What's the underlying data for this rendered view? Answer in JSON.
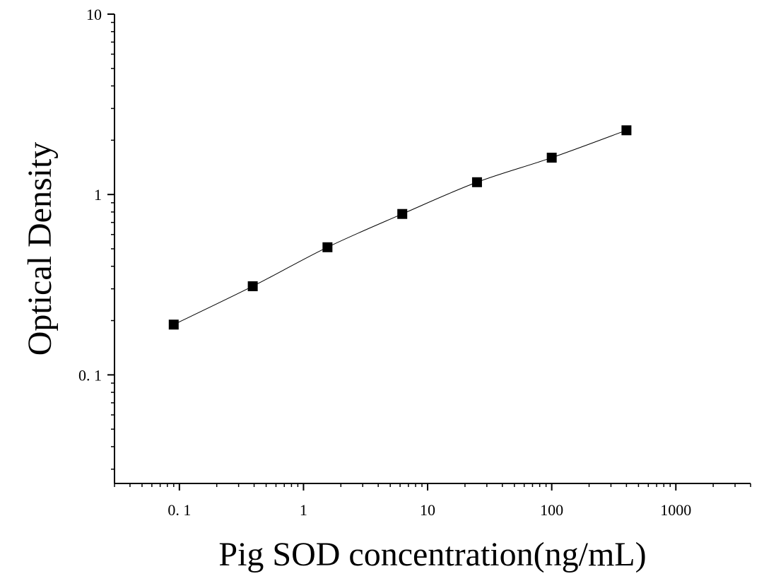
{
  "chart_data": {
    "type": "scatter",
    "xlabel": "Pig SOD concentration(ng/mL)",
    "ylabel": "Optical Density",
    "x_scale": "log",
    "y_scale": "log",
    "xlim": [
      0.03,
      4000
    ],
    "ylim": [
      0.025,
      10
    ],
    "x_ticks": [
      {
        "value": 0.1,
        "label": "0. 1"
      },
      {
        "value": 1,
        "label": "1"
      },
      {
        "value": 10,
        "label": "10"
      },
      {
        "value": 100,
        "label": "100"
      },
      {
        "value": 1000,
        "label": "1000"
      }
    ],
    "y_ticks": [
      {
        "value": 0.1,
        "label": "0. 1"
      },
      {
        "value": 1,
        "label": "1"
      },
      {
        "value": 10,
        "label": "10"
      }
    ],
    "grid": false,
    "legend": "none",
    "marker": "square",
    "color": "#000000",
    "series": [
      {
        "x": [
          0.09,
          0.39,
          1.56,
          6.25,
          25,
          100,
          400
        ],
        "y": [
          0.19,
          0.31,
          0.51,
          0.78,
          1.17,
          1.6,
          2.27
        ]
      }
    ]
  }
}
